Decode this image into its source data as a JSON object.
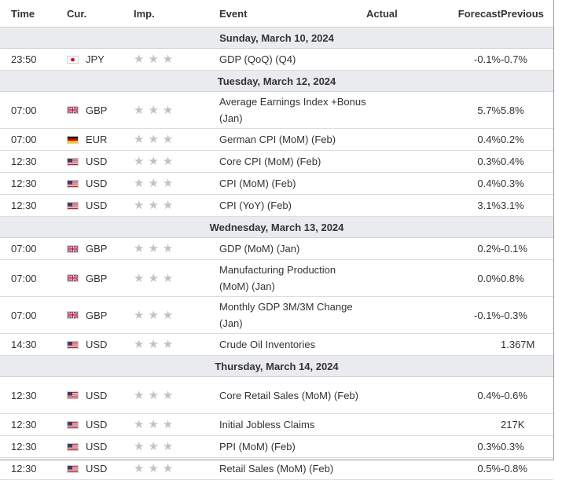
{
  "header": {
    "time": "Time",
    "currency": "Cur.",
    "importance": "Imp.",
    "event": "Event",
    "actual": "Actual",
    "forecast": "Forecast",
    "previous": "Previous"
  },
  "days": [
    {
      "date": "Sunday, March 10, 2024",
      "events": [
        {
          "time": "23:50",
          "cur": "JPY",
          "event": "GDP (QoQ) (Q4)",
          "actual": "",
          "forecast": "-0.1%",
          "previous": "-0.7%"
        }
      ]
    },
    {
      "date": "Tuesday, March 12, 2024",
      "events": [
        {
          "time": "07:00",
          "cur": "GBP",
          "event": "Average Earnings Index +Bonus (Jan)",
          "actual": "",
          "forecast": "5.7%",
          "previous": "5.8%"
        },
        {
          "time": "07:00",
          "cur": "EUR",
          "event": "German CPI (MoM) (Feb)",
          "actual": "",
          "forecast": "0.4%",
          "previous": "0.2%"
        },
        {
          "time": "12:30",
          "cur": "USD",
          "event": "Core CPI (MoM) (Feb)",
          "actual": "",
          "forecast": "0.3%",
          "previous": "0.4%"
        },
        {
          "time": "12:30",
          "cur": "USD",
          "event": "CPI (MoM) (Feb)",
          "actual": "",
          "forecast": "0.4%",
          "previous": "0.3%"
        },
        {
          "time": "12:30",
          "cur": "USD",
          "event": "CPI (YoY) (Feb)",
          "actual": "",
          "forecast": "3.1%",
          "previous": "3.1%"
        }
      ]
    },
    {
      "date": "Wednesday, March 13, 2024",
      "events": [
        {
          "time": "07:00",
          "cur": "GBP",
          "event": "GDP (MoM) (Jan)",
          "actual": "",
          "forecast": "0.2%",
          "previous": "-0.1%"
        },
        {
          "time": "07:00",
          "cur": "GBP",
          "event": "Manufacturing Production (MoM) (Jan)",
          "actual": "",
          "forecast": "0.0%",
          "previous": "0.8%"
        },
        {
          "time": "07:00",
          "cur": "GBP",
          "event": "Monthly GDP 3M/3M Change (Jan)",
          "actual": "",
          "forecast": "-0.1%",
          "previous": "-0.3%"
        },
        {
          "time": "14:30",
          "cur": "USD",
          "event": "Crude Oil Inventories",
          "actual": "",
          "forecast": "",
          "previous": "1.367M"
        }
      ]
    },
    {
      "date": "Thursday, March 14, 2024",
      "events": [
        {
          "time": "12:30",
          "cur": "USD",
          "event": "Core Retail Sales (MoM) (Feb)",
          "actual": "",
          "forecast": "0.4%",
          "previous": "-0.6%"
        },
        {
          "time": "12:30",
          "cur": "USD",
          "event": "Initial Jobless Claims",
          "actual": "",
          "forecast": "",
          "previous": "217K"
        },
        {
          "time": "12:30",
          "cur": "USD",
          "event": "PPI (MoM) (Feb)",
          "actual": "",
          "forecast": "0.3%",
          "previous": "0.3%"
        },
        {
          "time": "12:30",
          "cur": "USD",
          "event": "Retail Sales (MoM) (Feb)",
          "actual": "",
          "forecast": "0.5%",
          "previous": "-0.8%"
        }
      ]
    }
  ],
  "importance_stars": 3,
  "flag_icons": {
    "JPY": "japan-flag-icon",
    "GBP": "uk-flag-icon",
    "EUR": "germany-flag-icon",
    "USD": "us-flag-icon"
  },
  "colors": {
    "day_row_bg": "#e9ebee",
    "star": "#c2c2c2",
    "text": "#333333"
  }
}
